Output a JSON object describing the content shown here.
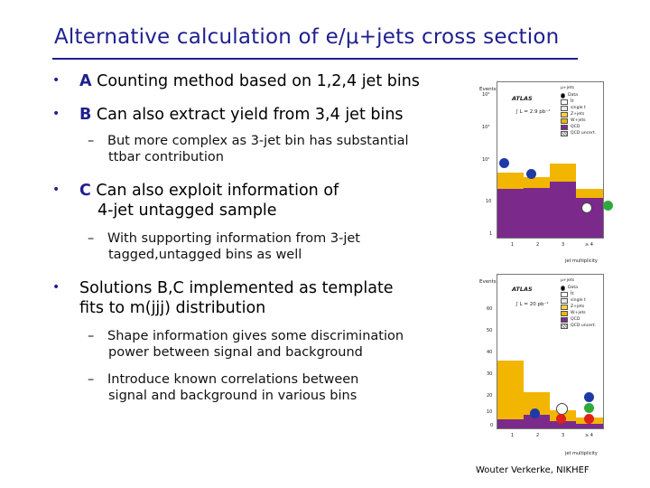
{
  "title": "Alternative calculation of e/μ+jets cross section",
  "bullets": [
    {
      "letter": "A",
      "text": " Counting method based on 1,2,4 jet bins"
    },
    {
      "letter": "B",
      "text": " Can also extract yield from 3,4 jet bins"
    },
    {
      "letter": "C",
      "text_line1": " Can also exploit information of",
      "text_line2": "4-jet untagged sample"
    },
    {
      "text_line1": "Solutions B,C implemented as template",
      "text_line2": "fits to m(jjj) distribution"
    }
  ],
  "subs": {
    "b1": {
      "line1": "But more complex as 3-jet bin has substantial",
      "line2": "ttbar contribution"
    },
    "c1": {
      "line1": "With supporting information from 3-jet",
      "line2": "tagged,untagged bins as well"
    },
    "s1": {
      "line1": "Shape information gives some discrimination",
      "line2": "power between signal and background"
    },
    "s2": {
      "line1": "Introduce known correlations between",
      "line2": "signal and background in various bins"
    }
  },
  "dash": "–",
  "bullet_glyph": "•",
  "footer": "Wouter Verkerke, NIKHEF",
  "plot_top": {
    "atlas": "ATLAS",
    "channel": "μ+jets",
    "lumi": "∫ L = 2.9 pb⁻¹",
    "ylabel": "Events",
    "xlabel": "jet multiplicity",
    "xticks": [
      "1",
      "2",
      "3",
      "≥ 4"
    ],
    "yticks": [
      "10⁴",
      "10³",
      "10²",
      "10",
      "1"
    ],
    "legend": [
      "Data",
      "t̄t",
      "single t",
      "Z+jets",
      "W+jets",
      "QCD",
      "QCD uncert."
    ]
  },
  "plot_bottom": {
    "atlas": "ATLAS",
    "channel": "μ+jets",
    "lumi": "∫ L = 20 pb⁻¹",
    "ylabel": "Events",
    "xlabel": "jet multiplicity",
    "xticks": [
      "1",
      "2",
      "3",
      "≥ 4"
    ],
    "yticks": [
      "60",
      "50",
      "40",
      "30",
      "20",
      "10",
      "0"
    ],
    "legend": [
      "Data",
      "t̄t",
      "single t",
      "Z+jets",
      "W+jets",
      "QCD",
      "QCD uncert."
    ]
  },
  "colors": {
    "title": "#1f1f8f",
    "ttbar": "#ffffff",
    "single_top": "#e8e8e8",
    "zjets": "#ffd23f",
    "wjets": "#f2b600",
    "qcd": "#7b2a8c",
    "marker_blue": "#1e3aa8",
    "marker_green": "#2eaa3c",
    "marker_red": "#e0201a"
  }
}
